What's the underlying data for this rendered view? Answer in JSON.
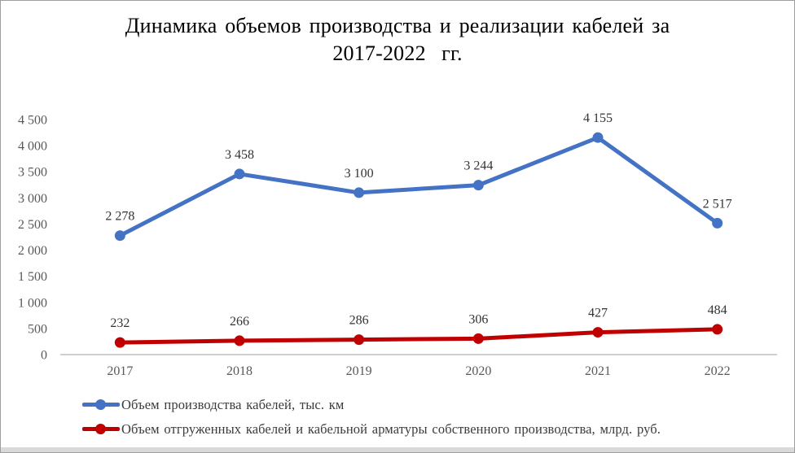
{
  "chart_data": {
    "type": "line",
    "title": "Динамика объемов производства и реализации кабелей за 2017-2022  гг.",
    "title_lines": [
      "Динамика объемов производства и реализации кабелей за",
      "2017-2022  гг."
    ],
    "categories": [
      "2017",
      "2018",
      "2019",
      "2020",
      "2021",
      "2022"
    ],
    "series": [
      {
        "name": "Объем производства кабелей, тыс. км",
        "values": [
          2278,
          3458,
          3100,
          3244,
          4155,
          2517
        ],
        "labels": [
          "2 278",
          "3 458",
          "3 100",
          "3 244",
          "4 155",
          "2 517"
        ],
        "color": "#4472C4"
      },
      {
        "name": "Объем отгруженных кабелей и кабельной арматуры собственного производства, млрд. руб.",
        "values": [
          232,
          266,
          286,
          306,
          427,
          484
        ],
        "labels": [
          "232",
          "266",
          "286",
          "306",
          "427",
          "484"
        ],
        "color": "#C00000"
      }
    ],
    "xlabel": "",
    "ylabel": "",
    "ylim": [
      0,
      4500
    ],
    "y_tick_step": 500,
    "y_ticks": [
      "0",
      "500",
      "1 000",
      "1 500",
      "2 000",
      "2 500",
      "3 000",
      "3 500",
      "4 000",
      "4 500"
    ],
    "grid": false,
    "legend_position": "bottom-left",
    "axis_color": "#BFBFBF",
    "tick_label_color": "#595959",
    "data_label_color": "#333333",
    "title_color": "#000000"
  }
}
